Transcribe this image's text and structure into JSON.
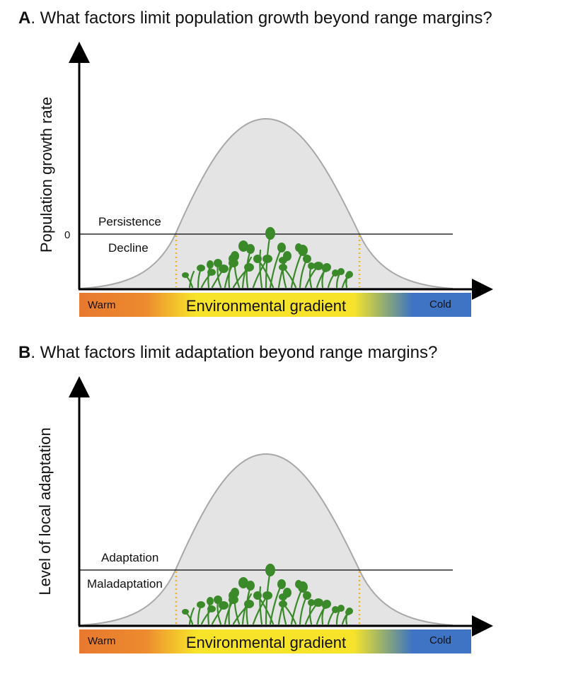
{
  "panels": [
    {
      "letter": "A",
      "question": ". What factors limit population growth beyond range margins?",
      "ylabel": "Population growth rate",
      "zero_label": "0",
      "above_label": "Persistence",
      "below_label": "Decline",
      "gradient_label": "Environmental gradient",
      "warm_label": "Warm",
      "cold_label": "Cold"
    },
    {
      "letter": "B",
      "question": ". What factors limit adaptation beyond range margins?",
      "ylabel": "Level of local adaptation",
      "above_label": "Adaptation",
      "below_label": "Maladaptation",
      "gradient_label": "Environmental gradient",
      "warm_label": "Warm",
      "cold_label": "Cold"
    }
  ],
  "colors": {
    "curve_fill": "#e4e4e4",
    "curve_stroke": "#a8a8a8",
    "warm": "#e8792f",
    "yellow": "#f7e42a",
    "cold": "#3f73c3",
    "margin_dots": "#f5b21f",
    "plants": "#3a8a2a"
  },
  "icons": {
    "plants": "plant-cluster-icon"
  }
}
